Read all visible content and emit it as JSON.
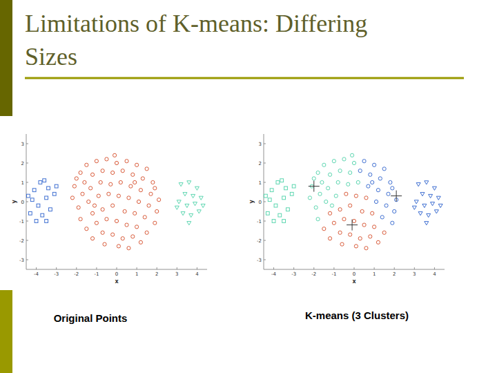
{
  "slide": {
    "title": "Limitations of K-means: Differing Sizes"
  },
  "chart_data": [
    {
      "type": "scatter",
      "title": "Original Points",
      "x_label": "x",
      "y_label": "y",
      "xlim": [
        -4.5,
        4.5
      ],
      "ylim": [
        -3.5,
        3.5
      ],
      "xticks": [
        -4,
        -3,
        -2,
        -1,
        0,
        1,
        2,
        3,
        4
      ],
      "yticks": [
        -3,
        -2,
        -1,
        0,
        1,
        2,
        3
      ],
      "grid": false,
      "series": [
        {
          "color": "#3f6fd1",
          "marker": "square",
          "x": [
            -4.1,
            -3.8,
            -3.4,
            -3.0,
            -4.2,
            -3.9,
            -3.5,
            -3.1,
            -4.3,
            -3.7,
            -3.3,
            -4.0,
            -3.5,
            -4.4,
            -3.6
          ],
          "values": [
            0.6,
            1.0,
            0.7,
            0.8,
            0.1,
            -0.2,
            0.2,
            0.4,
            -0.6,
            -0.7,
            -0.4,
            -1.0,
            -1.0,
            0.3,
            1.1
          ]
        },
        {
          "color": "#d95b3a",
          "marker": "circle",
          "x": [
            -1.8,
            -1.5,
            -1.0,
            -0.5,
            0.0,
            0.5,
            1.0,
            1.5,
            -2.1,
            -1.6,
            -1.2,
            -0.7,
            -0.2,
            0.3,
            0.8,
            1.3,
            1.8,
            -2.2,
            -1.7,
            -1.3,
            -0.8,
            -0.3,
            0.2,
            0.7,
            1.2,
            1.7,
            2.1,
            -1.9,
            -1.4,
            -0.9,
            -0.4,
            0.1,
            0.6,
            1.1,
            1.6,
            2.0,
            -1.8,
            -1.2,
            -0.7,
            -0.2,
            0.4,
            0.9,
            1.4,
            1.9,
            -1.5,
            -1.0,
            -0.5,
            0.0,
            0.5,
            1.0,
            1.5,
            -1.2,
            -0.7,
            -0.2,
            0.3,
            0.8,
            1.2,
            -0.6,
            0.1,
            0.6,
            -2.0,
            -1.1,
            0.9,
            1.9,
            -0.1
          ],
          "values": [
            1.5,
            1.9,
            2.1,
            2.2,
            2.0,
            2.1,
            1.9,
            1.7,
            0.8,
            1.0,
            1.4,
            1.6,
            1.5,
            1.6,
            1.4,
            1.2,
            1.0,
            0.2,
            0.4,
            0.7,
            1.0,
            0.9,
            1.0,
            0.8,
            0.6,
            0.4,
            0.1,
            -0.3,
            0.0,
            0.3,
            0.4,
            0.3,
            0.2,
            0.0,
            -0.2,
            -0.5,
            -0.9,
            -0.6,
            -0.4,
            -0.2,
            -0.5,
            -0.6,
            -0.8,
            -1.1,
            -1.4,
            -1.1,
            -0.9,
            -1.0,
            -1.2,
            -1.3,
            -1.6,
            -1.9,
            -1.6,
            -1.7,
            -1.9,
            -1.8,
            -2.1,
            -2.2,
            -2.3,
            -2.4,
            1.2,
            -0.2,
            1.0,
            0.7,
            2.4
          ]
        },
        {
          "color": "#5cd6b0",
          "marker": "triangle_down",
          "x": [
            3.2,
            3.6,
            4.0,
            3.4,
            3.8,
            4.2,
            3.1,
            3.5,
            3.9,
            3.3,
            3.7,
            4.1,
            3.6,
            3.0,
            4.3
          ],
          "values": [
            0.9,
            1.0,
            0.7,
            0.4,
            0.3,
            0.2,
            0.0,
            -0.2,
            -0.1,
            -0.6,
            -0.7,
            -0.5,
            -1.1,
            -0.3,
            -0.2
          ]
        }
      ]
    },
    {
      "type": "scatter",
      "title": "K-means (3 Clusters)",
      "x_label": "x",
      "y_label": "y",
      "xlim": [
        -4.5,
        4.5
      ],
      "ylim": [
        -3.5,
        3.5
      ],
      "xticks": [
        -4,
        -3,
        -2,
        -1,
        0,
        1,
        2,
        3,
        4
      ],
      "yticks": [
        -3,
        -2,
        -1,
        0,
        1,
        2,
        3
      ],
      "grid": false,
      "series": [
        {
          "color": "#5cd6b0",
          "marker": "square",
          "x": [
            -4.1,
            -3.8,
            -3.4,
            -3.0,
            -4.2,
            -3.9,
            -3.5,
            -3.1,
            -4.3,
            -3.7,
            -3.3,
            -4.0,
            -3.5,
            -4.4,
            -3.6
          ],
          "values": [
            0.6,
            1.0,
            0.7,
            0.8,
            0.1,
            -0.2,
            0.2,
            0.4,
            -0.6,
            -0.7,
            -0.4,
            -1.0,
            -1.0,
            0.3,
            1.1
          ]
        },
        {
          "color": "#5cd6b0",
          "marker": "circle",
          "x": [
            -1.8,
            -1.5,
            -1.0,
            -0.5,
            0.0,
            -2.1,
            -1.6,
            -1.2,
            -0.7,
            -0.2,
            -2.2,
            -1.7,
            -1.3,
            -0.8,
            -0.3,
            0.2,
            -1.9,
            -1.4,
            -0.9,
            -1.8,
            -2.0,
            -1.1,
            -0.1
          ],
          "values": [
            1.5,
            1.9,
            2.1,
            2.2,
            2.0,
            0.8,
            1.0,
            1.4,
            1.6,
            1.5,
            0.2,
            0.4,
            0.7,
            1.0,
            0.9,
            1.0,
            -0.3,
            0.0,
            0.3,
            -0.9,
            1.2,
            -0.2,
            2.4
          ]
        },
        {
          "color": "#d95b3a",
          "marker": "circle",
          "x": [
            -0.4,
            0.1,
            0.6,
            -1.2,
            -0.7,
            -0.2,
            0.4,
            0.9,
            -1.5,
            -1.0,
            -0.5,
            0.0,
            0.5,
            1.0,
            1.5,
            -1.2,
            -0.7,
            -0.2,
            0.3,
            0.8,
            1.2,
            -0.6,
            0.1,
            0.6
          ],
          "values": [
            0.4,
            0.3,
            0.2,
            -0.6,
            -0.4,
            -0.2,
            -0.5,
            -0.6,
            -1.4,
            -1.1,
            -0.9,
            -1.0,
            -1.2,
            -1.3,
            -1.6,
            -1.9,
            -1.6,
            -1.7,
            -1.9,
            -1.8,
            -2.1,
            -2.2,
            -2.3,
            -2.4
          ]
        },
        {
          "color": "#3f6fd1",
          "marker": "circle",
          "x": [
            0.5,
            1.0,
            1.5,
            0.3,
            0.8,
            1.3,
            1.8,
            0.7,
            1.2,
            1.7,
            2.1,
            1.1,
            1.6,
            2.0,
            1.4,
            1.9,
            0.9,
            1.9
          ],
          "values": [
            2.1,
            1.9,
            1.7,
            1.6,
            1.4,
            1.2,
            1.0,
            0.8,
            0.6,
            0.4,
            0.1,
            0.0,
            -0.2,
            -0.5,
            -0.8,
            -1.1,
            1.0,
            0.7
          ]
        },
        {
          "color": "#3f6fd1",
          "marker": "triangle_down",
          "x": [
            3.2,
            3.6,
            4.0,
            3.4,
            3.8,
            4.2,
            3.1,
            3.5,
            3.9,
            3.3,
            3.7,
            4.1,
            3.6,
            3.0,
            4.3
          ],
          "values": [
            0.9,
            1.0,
            0.7,
            0.4,
            0.3,
            0.2,
            0.0,
            -0.2,
            -0.1,
            -0.6,
            -0.7,
            -0.5,
            -1.1,
            -0.3,
            -0.2
          ]
        },
        {
          "color": "#333333",
          "marker": "plus",
          "x": [
            -2.0,
            -0.1,
            2.1
          ],
          "values": [
            0.8,
            -1.2,
            0.3
          ]
        }
      ]
    }
  ]
}
